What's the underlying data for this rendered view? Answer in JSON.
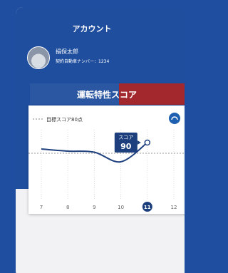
{
  "header": {
    "title": "アカウント"
  },
  "user": {
    "name": "損保太郎",
    "car_number": "契約自動車ナンバー：1234"
  },
  "banner": {
    "title": "運転特性スコア"
  },
  "chart_data": {
    "type": "line",
    "legend": "目標スコア80点",
    "target": 80,
    "categories": [
      "7",
      "8",
      "9",
      "10",
      "11",
      "12"
    ],
    "values": [
      84,
      82,
      81,
      72,
      90,
      null
    ],
    "ylim": [
      60,
      100
    ],
    "color": "#1d3f7d",
    "score_label": "スコア",
    "highlight_index": 4
  }
}
